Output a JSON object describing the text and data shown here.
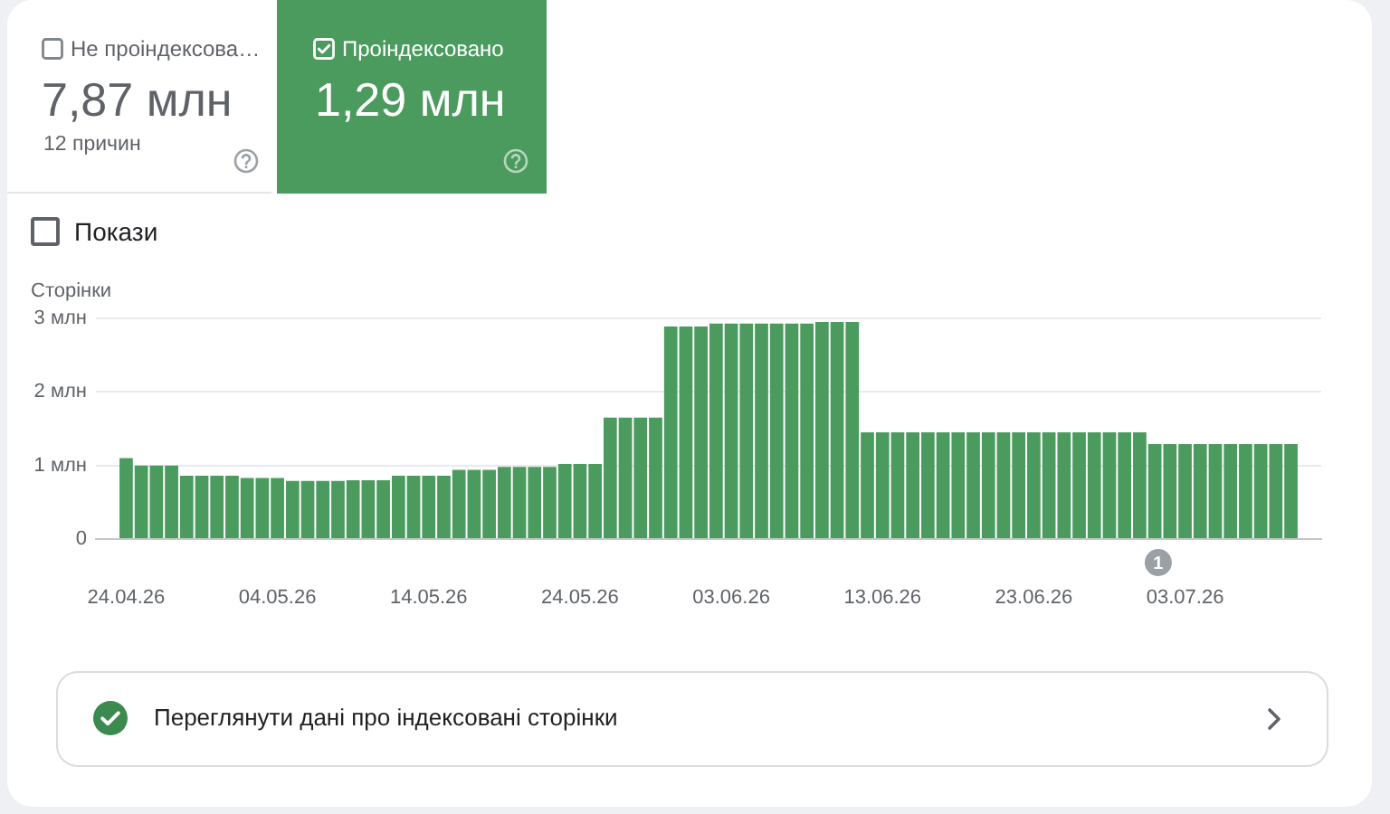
{
  "chart_data": [
    {
      "type": "other",
      "annotations": [
        "Не проіндексова…",
        "7,87 млн",
        "12 причин",
        "Проіндексовано",
        "1,29 млн",
        "Покази"
      ]
    },
    {
      "type": "bar",
      "ylabel": "Сторінки",
      "x": [
        "--04-24",
        "--04-25",
        "--04-26",
        "--04-27",
        "--04-28",
        "--04-29",
        "--04-30",
        "--05-01",
        "--05-02",
        "--05-03",
        "--05-04",
        "--05-05",
        "--05-06",
        "--05-07",
        "--05-08",
        "--05-09",
        "--05-10",
        "--05-11",
        "--05-12",
        "--05-13",
        "--05-14",
        "--05-15",
        "--05-16",
        "--05-17",
        "--05-18",
        "--05-19",
        "--05-20",
        "--05-21",
        "--05-22",
        "--05-23",
        "--05-24",
        "--05-25",
        "--05-26",
        "--05-27",
        "--05-28",
        "--05-29",
        "--05-30",
        "--05-31",
        "--06-01",
        "--06-02",
        "--06-03",
        "--06-04",
        "--06-05",
        "--06-06",
        "--06-07",
        "--06-08",
        "--06-09",
        "--06-10",
        "--06-11",
        "--06-12",
        "--06-13",
        "--06-14",
        "--06-15",
        "--06-16",
        "--06-17",
        "--06-18",
        "--06-19",
        "--06-20",
        "--06-21",
        "--06-22",
        "--06-23",
        "--06-24",
        "--06-25",
        "--06-26",
        "--06-27",
        "--06-28",
        "--06-29",
        "--06-30",
        "--07-01",
        "--07-02",
        "--07-03",
        "--07-04",
        "--07-05",
        "--07-06",
        "--07-07",
        "--07-08",
        "--07-09",
        "--07-10"
      ],
      "values": [
        1.1,
        1,
        1,
        1,
        0.86,
        0.86,
        0.86,
        0.86,
        0.83,
        0.83,
        0.83,
        0.79,
        0.79,
        0.79,
        0.79,
        0.8,
        0.8,
        0.8,
        0.86,
        0.86,
        0.86,
        0.86,
        0.94,
        0.94,
        0.94,
        0.98,
        0.98,
        0.98,
        0.98,
        1.02,
        1.02,
        1.02,
        1.65,
        1.65,
        1.65,
        1.65,
        2.89,
        2.89,
        2.89,
        2.93,
        2.93,
        2.93,
        2.93,
        2.93,
        2.93,
        2.93,
        2.95,
        2.95,
        2.95,
        1.45,
        1.45,
        1.45,
        1.45,
        1.45,
        1.45,
        1.45,
        1.45,
        1.45,
        1.45,
        1.45,
        1.45,
        1.45,
        1.45,
        1.45,
        1.45,
        1.45,
        1.45,
        1.45,
        1.29,
        1.29,
        1.29,
        1.29,
        1.29,
        1.29,
        1.29,
        1.29,
        1.29,
        1.29
      ],
      "color": "#4a9b5d",
      "xlim": [
        "--04-22",
        "--07-12"
      ],
      "xticks": [
        {
          "value": "--04-24",
          "label": "24.04.26"
        },
        {
          "value": "--05-04",
          "label": "04.05.26"
        },
        {
          "value": "--05-14",
          "label": "14.05.26"
        },
        {
          "value": "--05-24",
          "label": "24.05.26"
        },
        {
          "value": "--06-03",
          "label": "03.06.26"
        },
        {
          "value": "--06-13",
          "label": "13.06.26"
        },
        {
          "value": "--06-23",
          "label": "23.06.26"
        },
        {
          "value": "--07-03",
          "label": "03.07.26"
        }
      ],
      "ylim": [
        0,
        3
      ],
      "yticks": [
        0,
        {
          "value": 1,
          "label": "1 млн"
        },
        {
          "value": 2,
          "label": "2 млн"
        },
        {
          "value": 3,
          "label": "3 млн"
        }
      ],
      "grid": "y",
      "annotations": [
        "1"
      ]
    },
    {
      "type": "other",
      "annotations": [
        "Переглянути дані про індексовані сторінки"
      ]
    }
  ]
}
